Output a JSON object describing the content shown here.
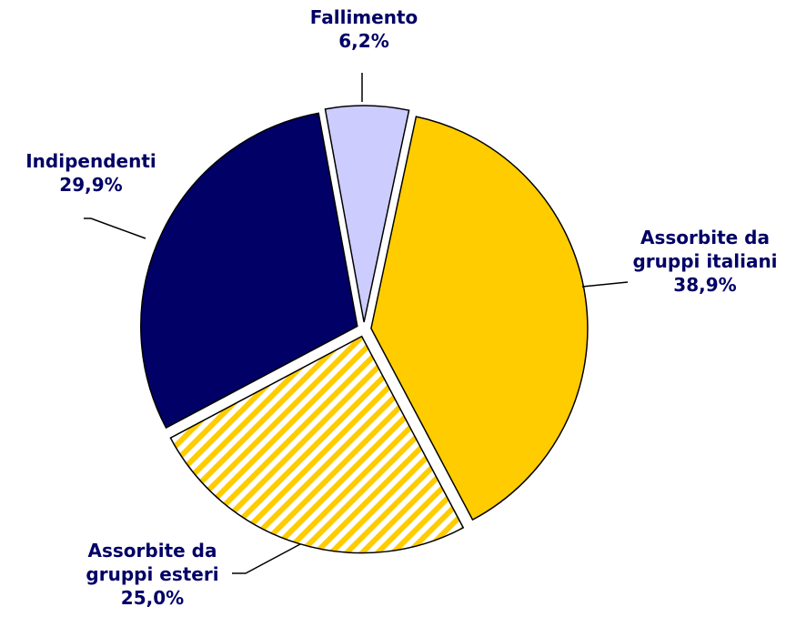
{
  "chart_data": {
    "type": "pie",
    "categories": [
      "Assorbite da gruppi italiani",
      "Assorbite da gruppi esteri",
      "Indipendenti",
      "Fallimento"
    ],
    "values": [
      38.9,
      25.0,
      29.9,
      6.2
    ],
    "value_labels": [
      "38,9%",
      "25,0%",
      "29,9%",
      "6,2%"
    ],
    "colors": [
      "#ffcc00",
      "#ffcc00",
      "#000066",
      "#ccccff"
    ]
  }
}
